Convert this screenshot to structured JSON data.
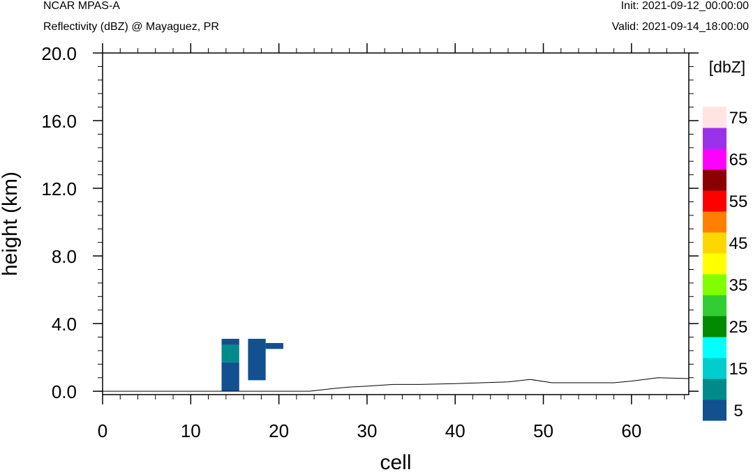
{
  "header": {
    "model": "NCAR MPAS-A",
    "subtitle": "Reflectivity (dBZ) @ Mayaguez, PR",
    "init": "Init: 2021-09-12_00:00:00",
    "valid": "Valid: 2021-09-14_18:00:00"
  },
  "chart_data": {
    "type": "heatmap",
    "title": "Reflectivity (dBZ) @ Mayaguez, PR",
    "xlabel": "cell",
    "ylabel": "height (km)",
    "xlim": [
      0,
      66.5
    ],
    "ylim": [
      -0.2,
      20.0
    ],
    "x_ticks": [
      0,
      10,
      20,
      30,
      40,
      50,
      60
    ],
    "x_tick_labels": [
      "0",
      "10",
      "20",
      "30",
      "40",
      "50",
      "60"
    ],
    "y_ticks": [
      0,
      4,
      8,
      12,
      16,
      20
    ],
    "y_tick_labels": [
      "0.0",
      "4.0",
      "8.0",
      "12.0",
      "16.0",
      "20.0"
    ],
    "grid": false,
    "colorbar": {
      "unit_label": "[dbZ]",
      "levels": [
        5,
        10,
        15,
        20,
        25,
        30,
        35,
        40,
        45,
        50,
        55,
        60,
        65,
        70,
        75
      ],
      "tick_labels": [
        "5",
        "15",
        "25",
        "35",
        "45",
        "55",
        "65",
        "75"
      ],
      "tick_values": [
        5,
        15,
        25,
        35,
        45,
        55,
        65,
        75
      ],
      "colors": [
        "#12508f",
        "#008b8b",
        "#00cdcd",
        "#00ffff",
        "#008b00",
        "#32cd32",
        "#7fff00",
        "#ffff00",
        "#ffd700",
        "#ff7f00",
        "#ff0000",
        "#8b0000",
        "#ff00ff",
        "#9a32eb",
        "#ffe4e1"
      ]
    },
    "cells": [
      {
        "x0": 13.5,
        "x1": 15.5,
        "y0": 0.0,
        "y1": 1.7,
        "dbz": 5
      },
      {
        "x0": 13.5,
        "x1": 15.5,
        "y0": 1.7,
        "y1": 2.75,
        "dbz": 10
      },
      {
        "x0": 13.5,
        "x1": 15.5,
        "y0": 2.75,
        "y1": 3.1,
        "dbz": 5
      },
      {
        "x0": 16.5,
        "x1": 18.5,
        "y0": 0.65,
        "y1": 3.1,
        "dbz": 5
      },
      {
        "x0": 18.5,
        "x1": 20.5,
        "y0": 2.5,
        "y1": 2.85,
        "dbz": 5
      }
    ],
    "terrain": {
      "x": [
        0,
        10,
        20,
        23.5,
        26,
        28,
        30,
        33,
        36,
        40,
        43,
        46,
        48.5,
        51,
        55,
        58,
        60,
        63,
        66.5
      ],
      "y": [
        0.0,
        0.0,
        0.0,
        0.0,
        0.15,
        0.25,
        0.3,
        0.4,
        0.4,
        0.45,
        0.5,
        0.55,
        0.7,
        0.5,
        0.5,
        0.5,
        0.6,
        0.8,
        0.75
      ]
    }
  }
}
